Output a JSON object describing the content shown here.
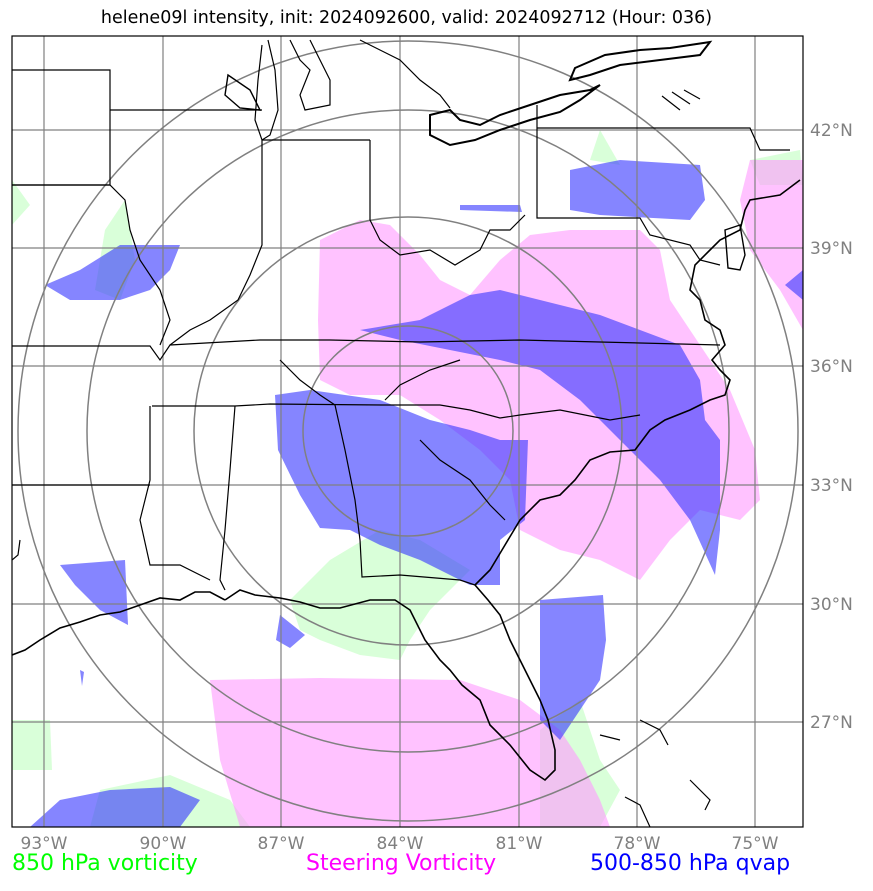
{
  "title": "helene09l intensity, init: 2024092600, valid: 2024092712 (Hour: 036)",
  "lon_ticks": [
    "93°W",
    "90°W",
    "87°W",
    "84°W",
    "81°W",
    "78°W",
    "75°W"
  ],
  "lat_ticks": [
    "42°N",
    "39°N",
    "36°N",
    "33°N",
    "30°N",
    "27°N"
  ],
  "legend": {
    "vort850": {
      "label": "850 hPa vorticity",
      "color": "#00ff00"
    },
    "steering": {
      "label": "Steering Vorticity",
      "color": "#ff00ff"
    },
    "qvap": {
      "label": "500-850 hPa qvap",
      "color": "#0000ff"
    }
  },
  "colors": {
    "vort850_fill": "#ccffcc",
    "steering_fill": "#ff99ff",
    "qvap_fill": "#3333ff",
    "grid": "#808080",
    "range_rings": "#808080",
    "coastline": "#000000"
  }
}
